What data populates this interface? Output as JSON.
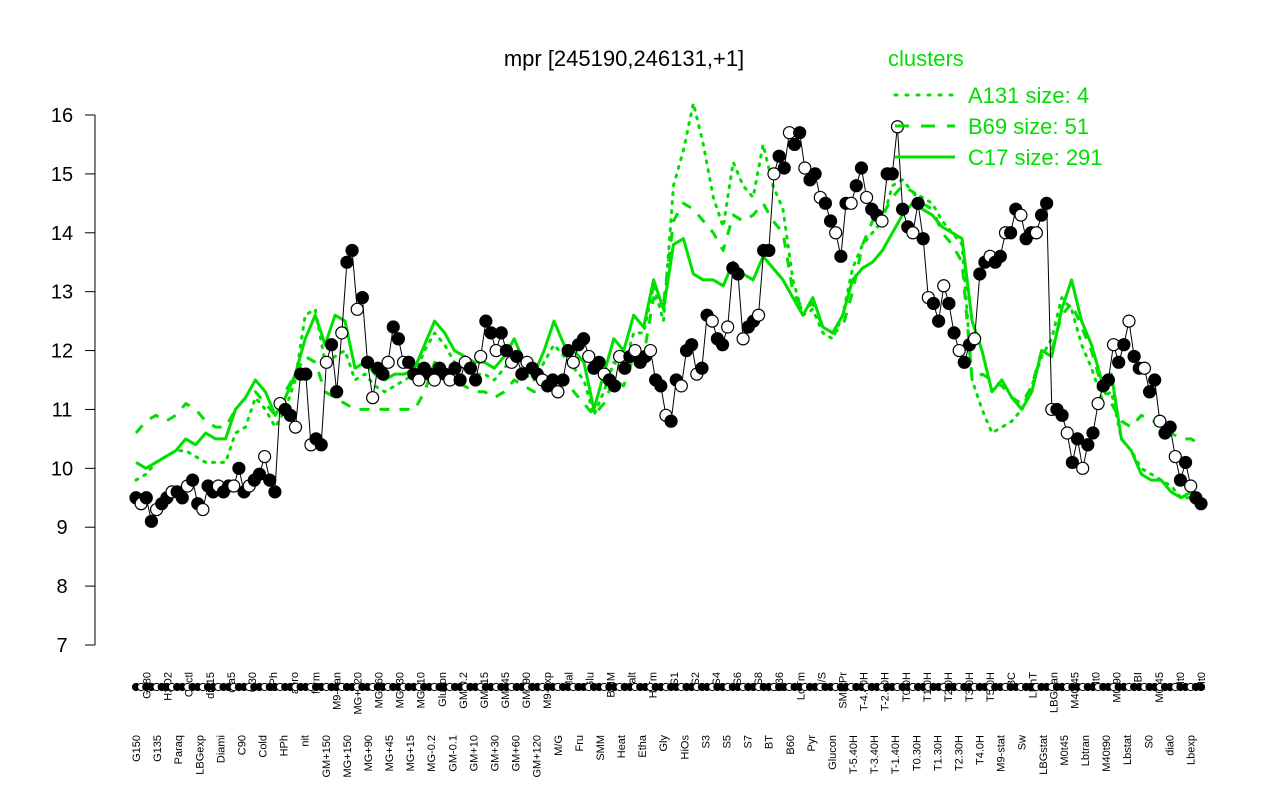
{
  "chart_data": {
    "type": "line",
    "title": "mpr [245190,246131,+1]",
    "xlabel": "",
    "ylabel": "",
    "ylim": [
      7,
      16
    ],
    "yticks": [
      7,
      8,
      9,
      10,
      11,
      12,
      13,
      14,
      15,
      16
    ],
    "grid": false,
    "legend": {
      "placement": "top-right",
      "title": "clusters",
      "entries": [
        {
          "label": "A131 size: 4",
          "style": "dotted"
        },
        {
          "label": "B69 size: 51",
          "style": "dashed"
        },
        {
          "label": "C17 size: 291",
          "style": "solid"
        }
      ]
    },
    "colors": {
      "line": "#00e000",
      "points": "#000000",
      "legend": "#00e000"
    },
    "x_labels": [
      "G150",
      "G180",
      "G135",
      "H2O2",
      "Paraq",
      "Oxctl",
      "LBGexp",
      "dia15",
      "Diami",
      "dia5",
      "C90",
      "C30",
      "Cold",
      "LPh",
      "HPh",
      "aero",
      "nit",
      "ferm",
      "GM+150",
      "M9-tran",
      "MG+150",
      "MG+120",
      "MG+90",
      "MG+60",
      "MG+45",
      "MG+30",
      "MG+15",
      "MG+10",
      "MG-0.2",
      "Glucon",
      "GM-0.1",
      "GM-0.2",
      "GM+10",
      "GM+15",
      "GM+30",
      "GM+45",
      "GM+60",
      "GM+90",
      "GM+120",
      "M9-exp",
      "M/G",
      "Mal",
      "Fru",
      "Glu",
      "SMM",
      "BMM",
      "Heat",
      "Salt",
      "Etha",
      "HiTm",
      "Gly",
      "S1",
      "HiOs",
      "S2",
      "S3",
      "S4",
      "S5",
      "S6",
      "S7",
      "S8",
      "BT",
      "B36",
      "B60",
      "LoTm",
      "Pyr",
      "G/S",
      "Glucon",
      "SMMPr",
      "T-5.40H",
      "T-4.40H",
      "T-3.40H",
      "T-2.40H",
      "T-1.40H",
      "T0.0H",
      "T0.30H",
      "T1.0H",
      "T1.30H",
      "T2.0H",
      "T2.30H",
      "T3.0H",
      "T4.0H",
      "T5.0H",
      "M9-stat",
      "BC",
      "Sw",
      "LPhT",
      "LBGstat",
      "LBGtran",
      "M0t45",
      "M40t45",
      "Lbtran",
      "Mt0",
      "M40t90",
      "M0t90",
      "Lbstat",
      "BI",
      "S0",
      "M0t45",
      "dia0",
      "Mt0",
      "Lbexp",
      "Mt0"
    ],
    "points": [
      {
        "x": 1,
        "y": 9.5
      },
      {
        "x": 2,
        "y": 9.4
      },
      {
        "x": 3,
        "y": 9.5
      },
      {
        "x": 4,
        "y": 9.1
      },
      {
        "x": 5,
        "y": 9.3
      },
      {
        "x": 6,
        "y": 9.4
      },
      {
        "x": 7,
        "y": 9.5
      },
      {
        "x": 8,
        "y": 9.6
      },
      {
        "x": 9,
        "y": 9.6
      },
      {
        "x": 10,
        "y": 9.5
      },
      {
        "x": 11,
        "y": 9.7
      },
      {
        "x": 12,
        "y": 9.8
      },
      {
        "x": 13,
        "y": 9.4
      },
      {
        "x": 14,
        "y": 9.3
      },
      {
        "x": 15,
        "y": 9.7
      },
      {
        "x": 16,
        "y": 9.6
      },
      {
        "x": 17,
        "y": 9.7
      },
      {
        "x": 18,
        "y": 9.6
      },
      {
        "x": 19,
        "y": 9.7
      },
      {
        "x": 20,
        "y": 9.7
      },
      {
        "x": 21,
        "y": 10.0
      },
      {
        "x": 22,
        "y": 9.6
      },
      {
        "x": 23,
        "y": 9.7
      },
      {
        "x": 24,
        "y": 9.8
      },
      {
        "x": 25,
        "y": 9.9
      },
      {
        "x": 26,
        "y": 10.2
      },
      {
        "x": 27,
        "y": 9.8
      },
      {
        "x": 28,
        "y": 9.6
      },
      {
        "x": 29,
        "y": 11.1
      },
      {
        "x": 30,
        "y": 11.0
      },
      {
        "x": 31,
        "y": 10.9
      },
      {
        "x": 32,
        "y": 10.7
      },
      {
        "x": 33,
        "y": 11.6
      },
      {
        "x": 34,
        "y": 11.6
      },
      {
        "x": 35,
        "y": 10.4
      },
      {
        "x": 36,
        "y": 10.5
      },
      {
        "x": 37,
        "y": 10.4
      },
      {
        "x": 38,
        "y": 11.8
      },
      {
        "x": 39,
        "y": 12.1
      },
      {
        "x": 40,
        "y": 11.3
      },
      {
        "x": 41,
        "y": 12.3
      },
      {
        "x": 42,
        "y": 13.5
      },
      {
        "x": 43,
        "y": 13.7
      },
      {
        "x": 44,
        "y": 12.7
      },
      {
        "x": 45,
        "y": 12.9
      },
      {
        "x": 46,
        "y": 11.8
      },
      {
        "x": 47,
        "y": 11.2
      },
      {
        "x": 48,
        "y": 11.7
      },
      {
        "x": 49,
        "y": 11.6
      },
      {
        "x": 50,
        "y": 11.8
      },
      {
        "x": 51,
        "y": 12.4
      },
      {
        "x": 52,
        "y": 12.2
      },
      {
        "x": 53,
        "y": 11.8
      },
      {
        "x": 54,
        "y": 11.8
      },
      {
        "x": 55,
        "y": 11.6
      },
      {
        "x": 56,
        "y": 11.5
      },
      {
        "x": 57,
        "y": 11.7
      },
      {
        "x": 58,
        "y": 11.6
      },
      {
        "x": 59,
        "y": 11.5
      },
      {
        "x": 60,
        "y": 11.7
      },
      {
        "x": 61,
        "y": 11.6
      },
      {
        "x": 62,
        "y": 11.5
      },
      {
        "x": 63,
        "y": 11.7
      },
      {
        "x": 64,
        "y": 11.5
      },
      {
        "x": 65,
        "y": 11.8
      },
      {
        "x": 66,
        "y": 11.7
      },
      {
        "x": 67,
        "y": 11.5
      },
      {
        "x": 68,
        "y": 11.9
      },
      {
        "x": 69,
        "y": 12.5
      },
      {
        "x": 70,
        "y": 12.3
      },
      {
        "x": 71,
        "y": 12.0
      },
      {
        "x": 72,
        "y": 12.3
      },
      {
        "x": 73,
        "y": 12.0
      },
      {
        "x": 74,
        "y": 11.8
      },
      {
        "x": 75,
        "y": 11.9
      },
      {
        "x": 76,
        "y": 11.6
      },
      {
        "x": 77,
        "y": 11.8
      },
      {
        "x": 78,
        "y": 11.7
      },
      {
        "x": 79,
        "y": 11.6
      },
      {
        "x": 80,
        "y": 11.5
      },
      {
        "x": 81,
        "y": 11.4
      },
      {
        "x": 82,
        "y": 11.5
      },
      {
        "x": 83,
        "y": 11.3
      },
      {
        "x": 84,
        "y": 11.5
      },
      {
        "x": 85,
        "y": 12.0
      },
      {
        "x": 86,
        "y": 11.8
      },
      {
        "x": 87,
        "y": 12.1
      },
      {
        "x": 88,
        "y": 12.2
      },
      {
        "x": 89,
        "y": 11.9
      },
      {
        "x": 90,
        "y": 11.7
      },
      {
        "x": 91,
        "y": 11.8
      },
      {
        "x": 92,
        "y": 11.6
      },
      {
        "x": 93,
        "y": 11.5
      },
      {
        "x": 94,
        "y": 11.4
      },
      {
        "x": 95,
        "y": 11.9
      },
      {
        "x": 96,
        "y": 11.7
      },
      {
        "x": 97,
        "y": 11.9
      },
      {
        "x": 98,
        "y": 12.0
      },
      {
        "x": 99,
        "y": 11.8
      },
      {
        "x": 100,
        "y": 11.9
      },
      {
        "x": 101,
        "y": 12.0
      },
      {
        "x": 102,
        "y": 11.5
      },
      {
        "x": 103,
        "y": 11.4
      },
      {
        "x": 104,
        "y": 10.9
      },
      {
        "x": 105,
        "y": 10.8
      },
      {
        "x": 106,
        "y": 11.5
      },
      {
        "x": 107,
        "y": 11.4
      },
      {
        "x": 108,
        "y": 12.0
      },
      {
        "x": 109,
        "y": 12.1
      },
      {
        "x": 110,
        "y": 11.6
      },
      {
        "x": 111,
        "y": 11.7
      },
      {
        "x": 112,
        "y": 12.6
      },
      {
        "x": 113,
        "y": 12.5
      },
      {
        "x": 114,
        "y": 12.2
      },
      {
        "x": 115,
        "y": 12.1
      },
      {
        "x": 116,
        "y": 12.4
      },
      {
        "x": 117,
        "y": 13.4
      },
      {
        "x": 118,
        "y": 13.3
      },
      {
        "x": 119,
        "y": 12.2
      },
      {
        "x": 120,
        "y": 12.4
      },
      {
        "x": 121,
        "y": 12.5
      },
      {
        "x": 122,
        "y": 12.6
      },
      {
        "x": 123,
        "y": 13.7
      },
      {
        "x": 124,
        "y": 13.7
      },
      {
        "x": 125,
        "y": 15.0
      },
      {
        "x": 126,
        "y": 15.3
      },
      {
        "x": 127,
        "y": 15.1
      },
      {
        "x": 128,
        "y": 15.7
      },
      {
        "x": 129,
        "y": 15.5
      },
      {
        "x": 130,
        "y": 15.7
      },
      {
        "x": 131,
        "y": 15.1
      },
      {
        "x": 132,
        "y": 14.9
      },
      {
        "x": 133,
        "y": 15.0
      },
      {
        "x": 134,
        "y": 14.6
      },
      {
        "x": 135,
        "y": 14.5
      },
      {
        "x": 136,
        "y": 14.2
      },
      {
        "x": 137,
        "y": 14.0
      },
      {
        "x": 138,
        "y": 13.6
      },
      {
        "x": 139,
        "y": 14.5
      },
      {
        "x": 140,
        "y": 14.5
      },
      {
        "x": 141,
        "y": 14.8
      },
      {
        "x": 142,
        "y": 15.1
      },
      {
        "x": 143,
        "y": 14.6
      },
      {
        "x": 144,
        "y": 14.4
      },
      {
        "x": 145,
        "y": 14.3
      },
      {
        "x": 146,
        "y": 14.2
      },
      {
        "x": 147,
        "y": 15.0
      },
      {
        "x": 148,
        "y": 15.0
      },
      {
        "x": 149,
        "y": 15.8
      },
      {
        "x": 150,
        "y": 14.4
      },
      {
        "x": 151,
        "y": 14.1
      },
      {
        "x": 152,
        "y": 14.0
      },
      {
        "x": 153,
        "y": 14.5
      },
      {
        "x": 154,
        "y": 13.9
      },
      {
        "x": 155,
        "y": 12.9
      },
      {
        "x": 156,
        "y": 12.8
      },
      {
        "x": 157,
        "y": 12.5
      },
      {
        "x": 158,
        "y": 13.1
      },
      {
        "x": 159,
        "y": 12.8
      },
      {
        "x": 160,
        "y": 12.3
      },
      {
        "x": 161,
        "y": 12.0
      },
      {
        "x": 162,
        "y": 11.8
      },
      {
        "x": 163,
        "y": 12.1
      },
      {
        "x": 164,
        "y": 12.2
      },
      {
        "x": 165,
        "y": 13.3
      },
      {
        "x": 166,
        "y": 13.5
      },
      {
        "x": 167,
        "y": 13.6
      },
      {
        "x": 168,
        "y": 13.5
      },
      {
        "x": 169,
        "y": 13.6
      },
      {
        "x": 170,
        "y": 14.0
      },
      {
        "x": 171,
        "y": 14.0
      },
      {
        "x": 172,
        "y": 14.4
      },
      {
        "x": 173,
        "y": 14.3
      },
      {
        "x": 174,
        "y": 13.9
      },
      {
        "x": 175,
        "y": 14.0
      },
      {
        "x": 176,
        "y": 14.0
      },
      {
        "x": 177,
        "y": 14.3
      },
      {
        "x": 178,
        "y": 14.5
      },
      {
        "x": 179,
        "y": 11.0
      },
      {
        "x": 180,
        "y": 11.0
      },
      {
        "x": 181,
        "y": 10.9
      },
      {
        "x": 182,
        "y": 10.6
      },
      {
        "x": 183,
        "y": 10.1
      },
      {
        "x": 184,
        "y": 10.5
      },
      {
        "x": 185,
        "y": 10.0
      },
      {
        "x": 186,
        "y": 10.4
      },
      {
        "x": 187,
        "y": 10.6
      },
      {
        "x": 188,
        "y": 11.1
      },
      {
        "x": 189,
        "y": 11.4
      },
      {
        "x": 190,
        "y": 11.5
      },
      {
        "x": 191,
        "y": 12.1
      },
      {
        "x": 192,
        "y": 11.8
      },
      {
        "x": 193,
        "y": 12.1
      },
      {
        "x": 194,
        "y": 12.5
      },
      {
        "x": 195,
        "y": 11.9
      },
      {
        "x": 196,
        "y": 11.7
      },
      {
        "x": 197,
        "y": 11.7
      },
      {
        "x": 198,
        "y": 11.3
      },
      {
        "x": 199,
        "y": 11.5
      },
      {
        "x": 200,
        "y": 10.8
      },
      {
        "x": 201,
        "y": 10.6
      },
      {
        "x": 202,
        "y": 10.7
      },
      {
        "x": 203,
        "y": 10.2
      },
      {
        "x": 204,
        "y": 9.8
      },
      {
        "x": 205,
        "y": 10.1
      },
      {
        "x": 206,
        "y": 9.7
      },
      {
        "x": 207,
        "y": 9.5
      },
      {
        "x": 208,
        "y": 9.4
      }
    ],
    "series": [
      {
        "name": "C17 size: 291",
        "style": "solid",
        "values": [
          10.1,
          10.0,
          10.1,
          10.2,
          10.3,
          10.5,
          10.4,
          10.6,
          10.5,
          10.5,
          11.0,
          11.2,
          11.5,
          11.3,
          10.9,
          11.2,
          11.6,
          12.2,
          12.6,
          12.1,
          12.6,
          12.5,
          11.7,
          11.8,
          11.6,
          11.5,
          11.6,
          11.6,
          11.7,
          12.1,
          12.5,
          12.3,
          12.0,
          11.9,
          11.8,
          11.8,
          11.7,
          11.9,
          12.2,
          11.8,
          11.6,
          12.0,
          12.5,
          12.1,
          12.0,
          11.8,
          11.0,
          11.6,
          12.2,
          12.0,
          12.6,
          12.4,
          13.2,
          12.7,
          13.8,
          13.9,
          13.3,
          13.2,
          13.2,
          13.1,
          13.5,
          13.3,
          13.2,
          13.6,
          13.4,
          13.2,
          12.9,
          12.6,
          12.9,
          12.4,
          12.3,
          12.6,
          13.2,
          13.4,
          13.5,
          13.7,
          14.0,
          14.3,
          14.5,
          14.4,
          14.3,
          14.1,
          14.0,
          13.9,
          12.5,
          12.0,
          11.3,
          11.5,
          11.2,
          11.0,
          11.3,
          12.0,
          11.9,
          12.7,
          13.2,
          12.5,
          12.1,
          11.5,
          11.6,
          10.5,
          10.3,
          9.9,
          9.8,
          9.8,
          9.6,
          9.5,
          9.6,
          9.5
        ]
      },
      {
        "name": "B69 size: 51",
        "style": "dashed",
        "values": [
          10.6,
          10.8,
          10.9,
          10.8,
          10.9,
          11.1,
          11.0,
          10.8,
          10.7,
          10.7,
          11.0,
          11.2,
          11.3,
          11.1,
          10.9,
          11.3,
          11.6,
          11.9,
          11.8,
          11.3,
          11.2,
          11.1,
          11.0,
          11.0,
          11.0,
          11.0,
          11.0,
          11.0,
          11.0,
          11.3,
          11.8,
          11.7,
          11.5,
          11.4,
          11.3,
          11.3,
          11.2,
          11.3,
          11.5,
          11.4,
          11.3,
          11.4,
          11.6,
          11.5,
          11.3,
          11.1,
          10.9,
          11.1,
          11.5,
          11.4,
          11.9,
          11.9,
          12.9,
          12.8,
          14.2,
          14.5,
          14.4,
          14.2,
          14.0,
          13.7,
          14.3,
          14.2,
          14.3,
          14.5,
          14.2,
          14.0,
          13.0,
          12.7,
          12.8,
          12.4,
          12.3,
          12.4,
          13.0,
          13.8,
          14.2,
          14.3,
          14.6,
          14.8,
          14.7,
          14.5,
          14.4,
          14.0,
          13.8,
          13.5,
          11.5,
          11.6,
          11.5,
          11.4,
          11.2,
          11.1,
          11.4,
          12.0,
          12.0,
          12.6,
          12.8,
          12.4,
          12.0,
          11.4,
          11.1,
          10.8,
          10.7,
          10.9,
          10.8,
          10.8,
          10.6,
          10.5,
          10.5,
          10.4
        ]
      },
      {
        "name": "A131 size: 4",
        "style": "dotted",
        "values": [
          9.8,
          9.9,
          10.1,
          10.2,
          10.3,
          10.3,
          10.2,
          10.1,
          10.1,
          10.1,
          10.6,
          10.7,
          11.2,
          11.0,
          10.7,
          11.0,
          11.5,
          12.6,
          12.7,
          11.8,
          11.9,
          12.0,
          11.5,
          11.6,
          11.4,
          11.3,
          11.4,
          11.5,
          11.6,
          12.0,
          12.3,
          12.1,
          11.8,
          11.7,
          11.6,
          11.6,
          11.5,
          11.7,
          11.9,
          11.6,
          11.5,
          11.8,
          12.1,
          11.9,
          11.7,
          11.5,
          10.9,
          11.3,
          11.8,
          11.7,
          12.3,
          12.3,
          13.1,
          12.5,
          14.8,
          15.4,
          16.2,
          15.5,
          14.6,
          14.1,
          15.2,
          14.8,
          14.6,
          15.5,
          14.8,
          14.4,
          13.2,
          12.6,
          12.7,
          12.3,
          12.2,
          12.6,
          13.4,
          13.8,
          14.0,
          14.2,
          14.8,
          14.9,
          14.7,
          14.6,
          14.5,
          14.2,
          14.0,
          13.8,
          11.5,
          11.0,
          10.6,
          10.7,
          10.8,
          11.0,
          11.4,
          11.9,
          12.2,
          12.9,
          12.7,
          12.1,
          11.7,
          11.2,
          11.3,
          10.5,
          10.3,
          10.0,
          9.9,
          9.8,
          9.7,
          9.5,
          9.5,
          9.5
        ]
      }
    ]
  }
}
